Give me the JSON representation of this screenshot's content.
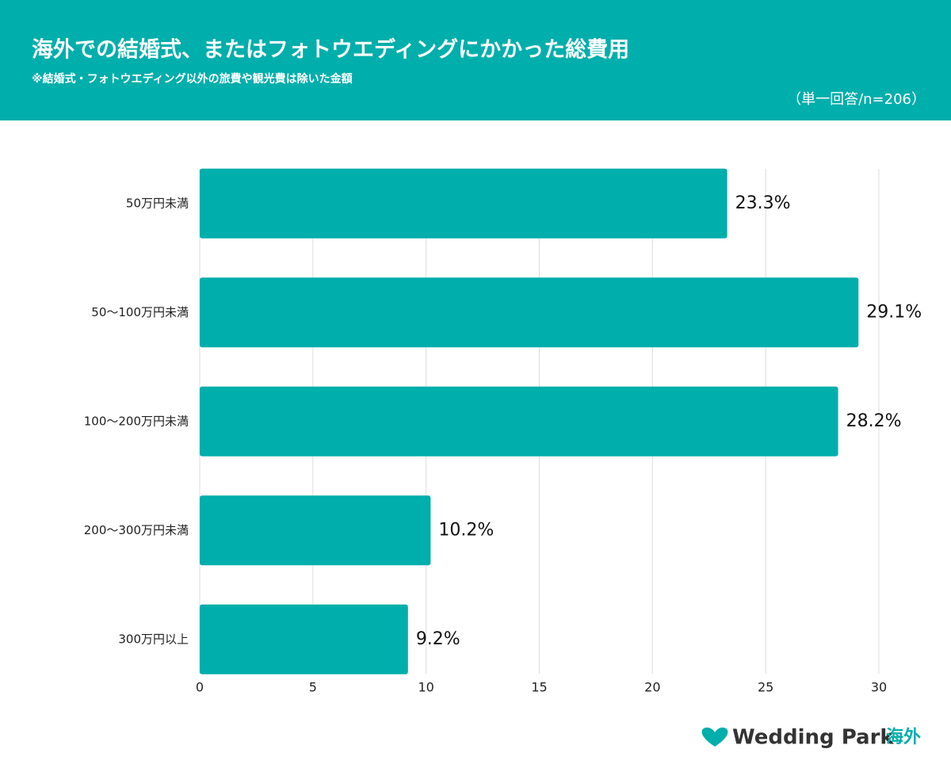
{
  "chart_data": {
    "type": "bar",
    "orientation": "horizontal",
    "title": "海外での結婚式、またはフォトウエディングにかかった総費用",
    "subtitle": "※結婚式・フォトウエディング以外の旅費や観光費は除いた金額",
    "note": "（単一回答/n=206）",
    "categories": [
      "50万円未満",
      "50～100万円未満",
      "100～200万円未満",
      "200～300万円未満",
      "300万円以上"
    ],
    "values": [
      23.3,
      29.1,
      28.2,
      10.2,
      9.2
    ],
    "value_labels": [
      "23.3%",
      "29.1%",
      "28.2%",
      "10.2%",
      "9.2%"
    ],
    "color": "#00aeab",
    "xlim": [
      0,
      30
    ],
    "xticks": [
      0,
      5,
      10,
      15,
      20,
      25,
      30
    ],
    "grid": true,
    "logo": {
      "text": "Wedding Park",
      "suffix": "海外"
    }
  }
}
